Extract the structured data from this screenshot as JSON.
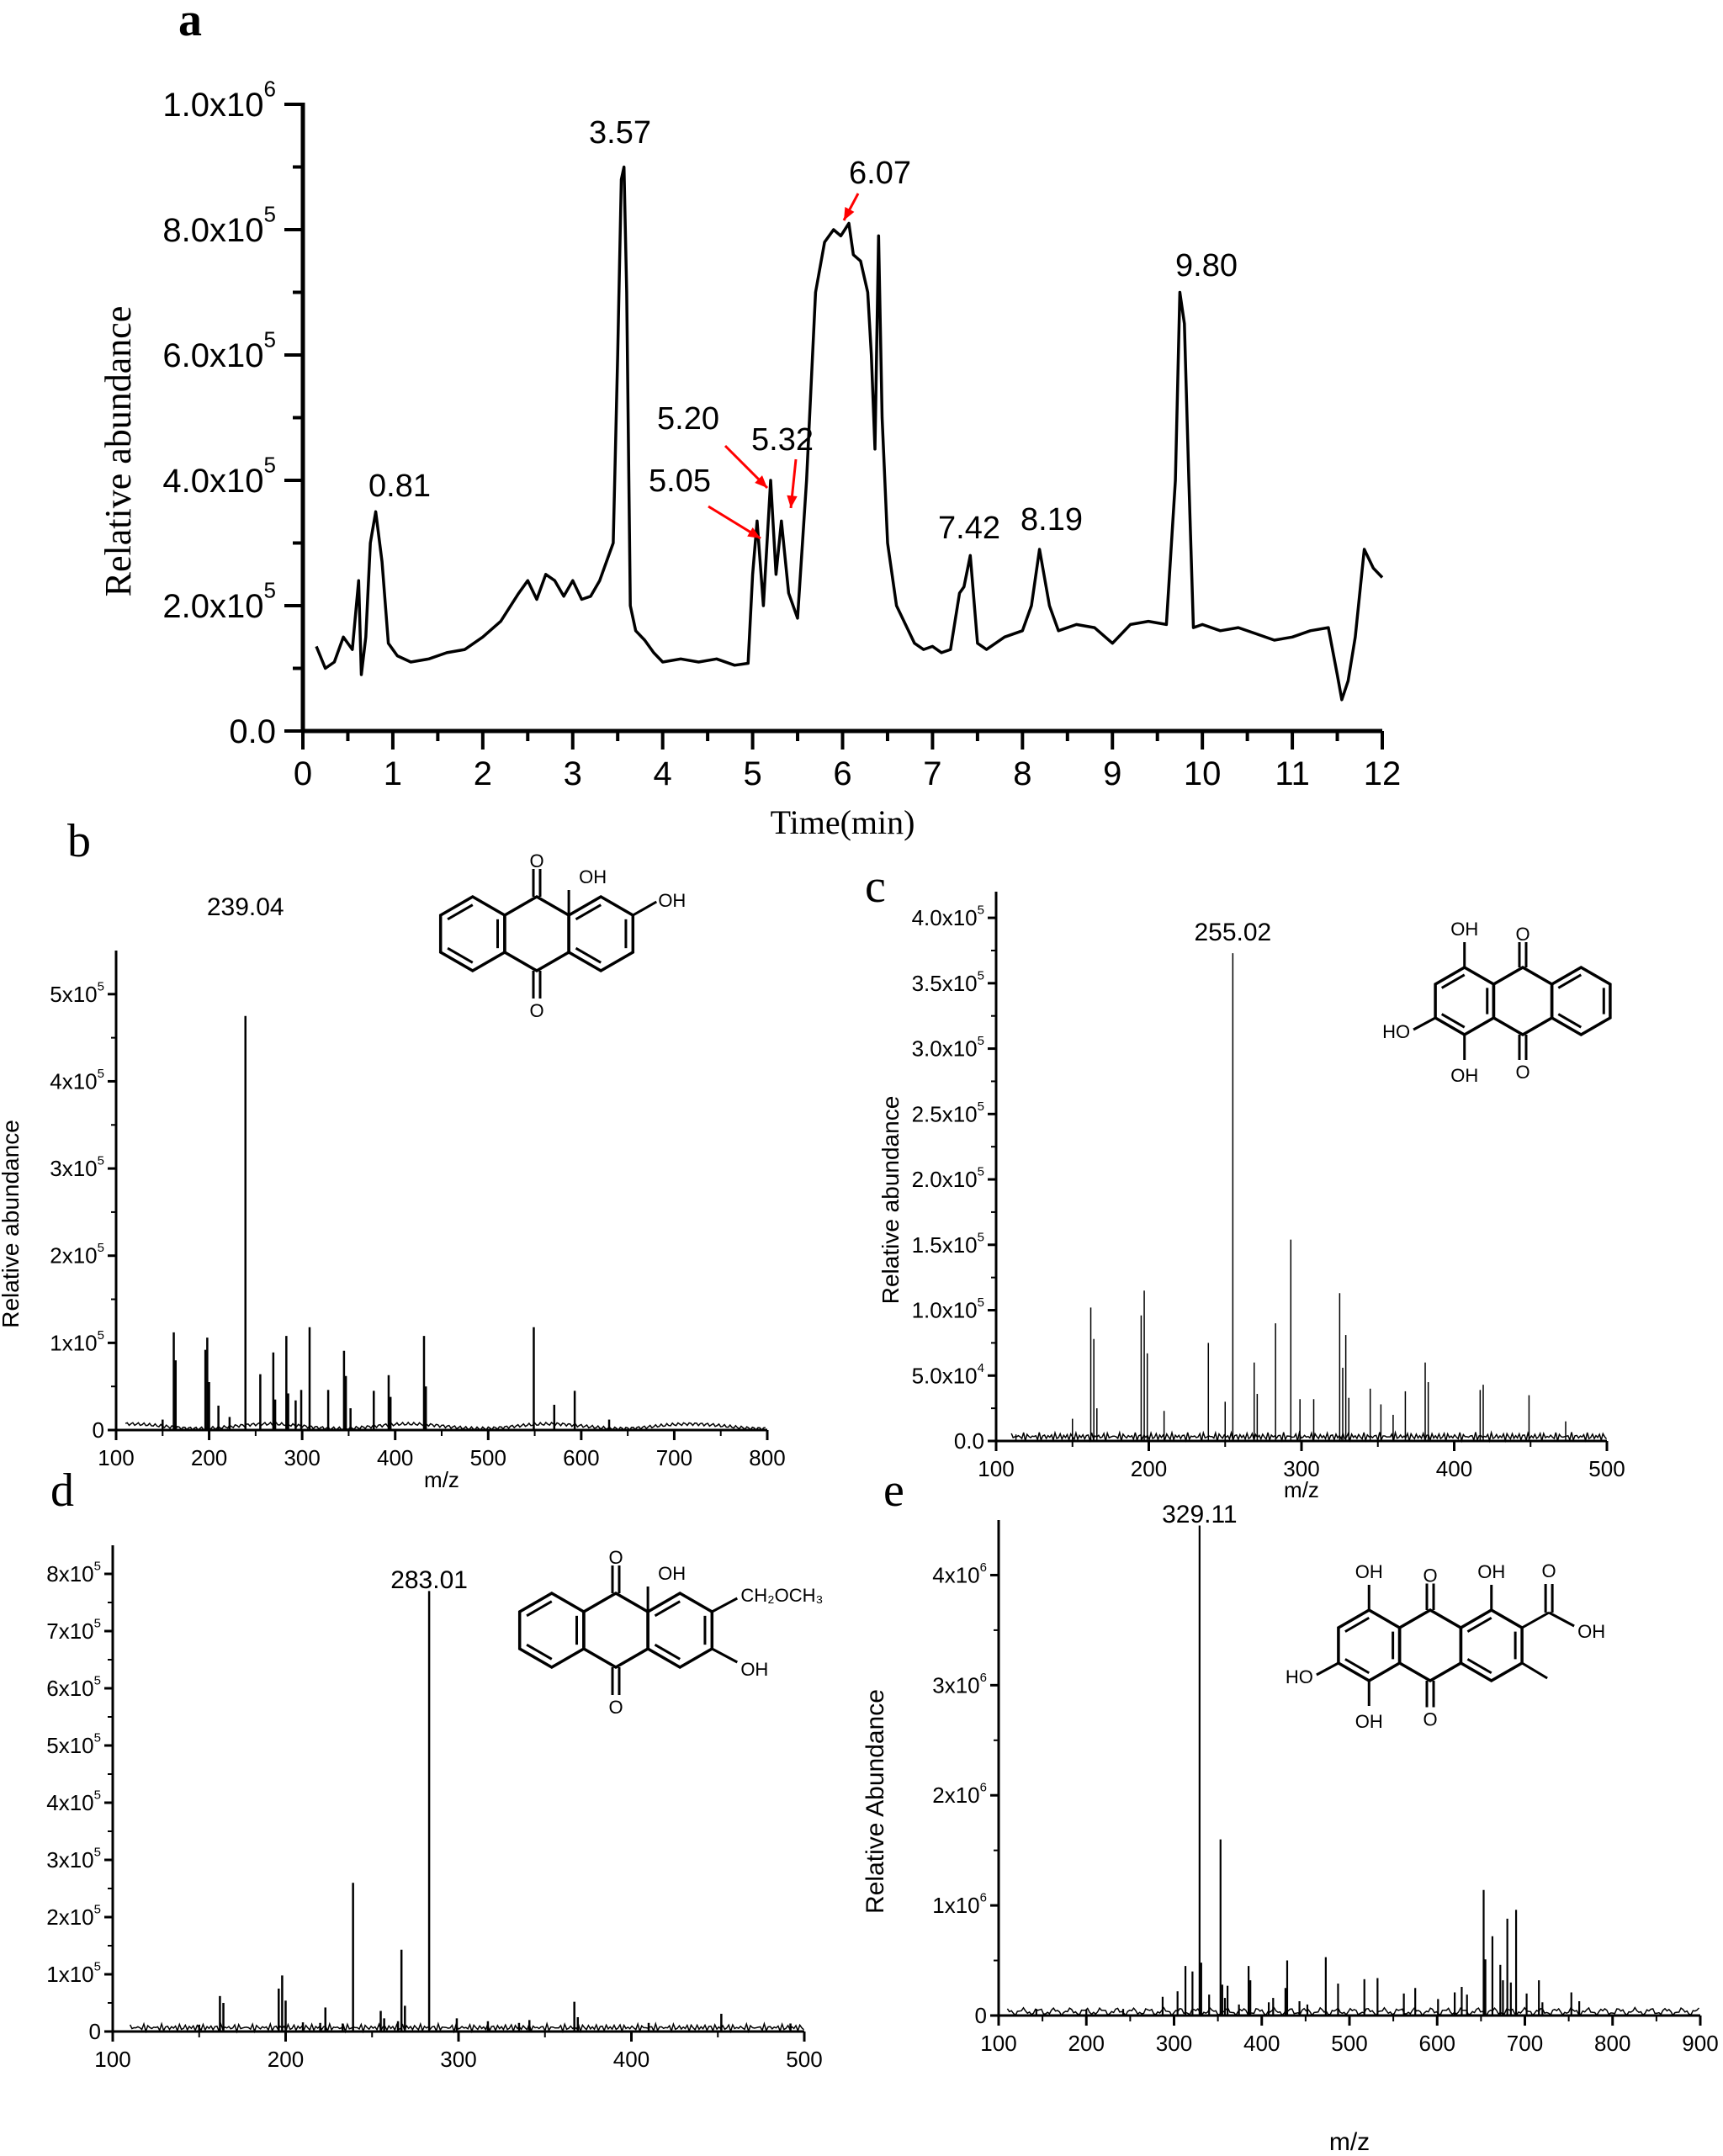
{
  "figure": {
    "panels": [
      {
        "id": "a",
        "letter": "a"
      },
      {
        "id": "b",
        "letter": "b"
      },
      {
        "id": "c",
        "letter": "c"
      },
      {
        "id": "d",
        "letter": "d"
      },
      {
        "id": "e",
        "letter": "e"
      }
    ]
  },
  "chart_data": [
    {
      "panel": "a",
      "type": "line",
      "title": "",
      "xlabel": "Time(min)",
      "ylabel": "Relative abundance",
      "xlim": [
        0,
        12
      ],
      "ylim": [
        0,
        1000000
      ],
      "x_ticks": [
        "0",
        "1",
        "2",
        "3",
        "4",
        "5",
        "6",
        "7",
        "8",
        "9",
        "10",
        "11",
        "12"
      ],
      "y_ticks": [
        "0.0",
        "2.0x10^5",
        "4.0x10^5",
        "6.0x10^5",
        "8.0x10^5",
        "1.0x10^6"
      ],
      "grid": false,
      "color": "#000000",
      "annotation_color": "#ff0000",
      "annotations": [
        {
          "label": "0.81",
          "x": 0.81,
          "y": 350000,
          "color": "#000000"
        },
        {
          "label": "3.57",
          "x": 3.57,
          "y": 900000,
          "color": "#000000"
        },
        {
          "label": "5.05",
          "x": 5.05,
          "y": 340000,
          "color": "#ff0000",
          "arrow": true
        },
        {
          "label": "5.20",
          "x": 5.2,
          "y": 400000,
          "color": "#ff0000",
          "arrow": true
        },
        {
          "label": "5.32",
          "x": 5.32,
          "y": 340000,
          "color": "#ff0000",
          "arrow": true
        },
        {
          "label": "6.07",
          "x": 6.07,
          "y": 810000,
          "color": "#ff0000",
          "arrow": true
        },
        {
          "label": "7.42",
          "x": 7.42,
          "y": 280000,
          "color": "#000000"
        },
        {
          "label": "8.19",
          "x": 8.19,
          "y": 290000,
          "color": "#000000"
        },
        {
          "label": "9.80",
          "x": 9.8,
          "y": 700000,
          "color": "#000000"
        }
      ],
      "x": [
        0.15,
        0.25,
        0.35,
        0.45,
        0.55,
        0.62,
        0.65,
        0.7,
        0.75,
        0.81,
        0.88,
        0.95,
        1.05,
        1.2,
        1.4,
        1.6,
        1.8,
        2.0,
        2.2,
        2.4,
        2.5,
        2.6,
        2.7,
        2.8,
        2.9,
        3.0,
        3.1,
        3.2,
        3.3,
        3.4,
        3.45,
        3.5,
        3.54,
        3.57,
        3.6,
        3.64,
        3.7,
        3.8,
        3.9,
        4.0,
        4.2,
        4.4,
        4.6,
        4.8,
        4.95,
        5.0,
        5.05,
        5.12,
        5.2,
        5.26,
        5.32,
        5.4,
        5.5,
        5.6,
        5.7,
        5.8,
        5.9,
        5.98,
        6.07,
        6.12,
        6.2,
        6.28,
        6.32,
        6.36,
        6.4,
        6.44,
        6.5,
        6.6,
        6.7,
        6.8,
        6.9,
        7.0,
        7.1,
        7.2,
        7.3,
        7.35,
        7.42,
        7.5,
        7.6,
        7.8,
        8.0,
        8.1,
        8.19,
        8.3,
        8.4,
        8.6,
        8.8,
        9.0,
        9.2,
        9.4,
        9.6,
        9.7,
        9.75,
        9.8,
        9.85,
        9.9,
        10.0,
        10.2,
        10.4,
        10.6,
        10.8,
        11.0,
        11.2,
        11.4,
        11.5,
        11.55,
        11.62,
        11.7,
        11.8,
        11.9,
        12.0
      ],
      "values": [
        135000,
        100000,
        110000,
        150000,
        130000,
        240000,
        90000,
        150000,
        300000,
        350000,
        270000,
        140000,
        120000,
        110000,
        115000,
        125000,
        130000,
        150000,
        175000,
        220000,
        240000,
        210000,
        250000,
        240000,
        215000,
        240000,
        210000,
        215000,
        240000,
        280000,
        300000,
        600000,
        880000,
        900000,
        700000,
        200000,
        160000,
        145000,
        125000,
        110000,
        115000,
        110000,
        115000,
        105000,
        108000,
        250000,
        335000,
        200000,
        400000,
        250000,
        335000,
        220000,
        180000,
        400000,
        700000,
        780000,
        800000,
        790000,
        810000,
        760000,
        750000,
        700000,
        600000,
        450000,
        790000,
        500000,
        300000,
        200000,
        170000,
        140000,
        130000,
        135000,
        125000,
        130000,
        220000,
        230000,
        280000,
        140000,
        130000,
        150000,
        160000,
        200000,
        290000,
        200000,
        160000,
        170000,
        165000,
        140000,
        170000,
        175000,
        170000,
        400000,
        700000,
        650000,
        400000,
        165000,
        170000,
        160000,
        165000,
        155000,
        145000,
        150000,
        160000,
        165000,
        90000,
        50000,
        80000,
        150000,
        290000,
        260000,
        245000
      ]
    },
    {
      "panel": "b",
      "type": "bar",
      "chart_style": "mass_spectrum",
      "xlabel": "m/z",
      "ylabel": "Relative abundance",
      "xlim": [
        100,
        800
      ],
      "ylim": [
        0,
        550000
      ],
      "x_ticks": [
        "100",
        "200",
        "300",
        "400",
        "500",
        "600",
        "700",
        "800"
      ],
      "y_ticks": [
        "0",
        "1x10^5",
        "2x10^5",
        "3x10^5",
        "4x10^5",
        "5x10^5"
      ],
      "base_peak_label": "239.04",
      "structure": {
        "substituents": [
          "O",
          "OH",
          "OH",
          "O"
        ]
      },
      "x": [
        150,
        162,
        164,
        196,
        198,
        200,
        210,
        222,
        239.04,
        255,
        269,
        271,
        283,
        285,
        293,
        299,
        308,
        328,
        345,
        347,
        352,
        377,
        393,
        395,
        431,
        433,
        549,
        571,
        593,
        630
      ],
      "values": [
        12000,
        112000,
        80000,
        92000,
        106000,
        55000,
        28000,
        15000,
        475000,
        64000,
        89000,
        35000,
        108000,
        42000,
        34000,
        46000,
        118000,
        46000,
        91000,
        62000,
        25000,
        45000,
        63000,
        38000,
        108000,
        50000,
        118000,
        29000,
        45000,
        12000
      ]
    },
    {
      "panel": "c",
      "type": "bar",
      "chart_style": "mass_spectrum",
      "xlabel": "m/z",
      "ylabel": "Relative abundance",
      "xlim": [
        100,
        500
      ],
      "ylim": [
        0,
        420000
      ],
      "x_ticks": [
        "100",
        "200",
        "300",
        "400",
        "500"
      ],
      "y_ticks": [
        "0.0",
        "5.0x10^4",
        "1.0x10^5",
        "1.5x10^5",
        "2.0x10^5",
        "2.5x10^5",
        "3.0x10^5",
        "3.5x10^5",
        "4.0x10^5"
      ],
      "base_peak_label": "255.02",
      "structure": {
        "substituents": [
          "OH",
          "O",
          "HO",
          "OH",
          "O"
        ]
      },
      "x": [
        113,
        150,
        162,
        164,
        166,
        195,
        197,
        199,
        210,
        239,
        250,
        255.02,
        269,
        271,
        283,
        293,
        299,
        308,
        325,
        327,
        329,
        331,
        345,
        352,
        360,
        368,
        381,
        383,
        417,
        419,
        449,
        473
      ],
      "values": [
        5000,
        17000,
        102000,
        78000,
        25000,
        96000,
        115000,
        67000,
        23000,
        75000,
        30000,
        373000,
        60000,
        36000,
        90000,
        154000,
        32000,
        32000,
        113000,
        56000,
        81000,
        33000,
        40000,
        28000,
        20000,
        38000,
        60000,
        45000,
        39000,
        43000,
        35000,
        15000
      ]
    },
    {
      "panel": "d",
      "type": "bar",
      "chart_style": "mass_spectrum",
      "xlabel": "",
      "ylabel": "",
      "xlim": [
        100,
        500
      ],
      "ylim": [
        0,
        850000
      ],
      "x_ticks": [
        "100",
        "200",
        "300",
        "400",
        "500"
      ],
      "y_ticks": [
        "0",
        "1x10^5",
        "2x10^5",
        "3x10^5",
        "4x10^5",
        "5x10^5",
        "6x10^5",
        "7x10^5",
        "8x10^5"
      ],
      "base_peak_label": "283.01",
      "structure": {
        "substituents": [
          "O",
          "OH",
          "CH2OCH3",
          "OH",
          "O"
        ]
      },
      "x": [
        150,
        162,
        164,
        196,
        198,
        200,
        210,
        220,
        223,
        233,
        239,
        255,
        257,
        265,
        267,
        269,
        283.01,
        299,
        317,
        335,
        341,
        367,
        369,
        410,
        452,
        492
      ],
      "values": [
        12000,
        62000,
        50000,
        75000,
        98000,
        54000,
        16000,
        15000,
        42000,
        14000,
        260000,
        36000,
        23000,
        18000,
        143000,
        45000,
        770000,
        23000,
        18000,
        15000,
        20000,
        52000,
        25000,
        15000,
        31000,
        14000
      ]
    },
    {
      "panel": "e",
      "type": "bar",
      "chart_style": "mass_spectrum",
      "xlabel": "m/z",
      "ylabel": "Relative Abundance",
      "xlim": [
        100,
        900
      ],
      "ylim": [
        0,
        4500000
      ],
      "x_ticks": [
        "100",
        "200",
        "300",
        "400",
        "500",
        "600",
        "700",
        "800",
        "900"
      ],
      "y_ticks": [
        "0",
        "1x10^6",
        "2x10^6",
        "3x10^6",
        "4x10^6"
      ],
      "base_peak_label": "329.11",
      "structure": {
        "substituents": [
          "OH",
          "O",
          "OH",
          "O",
          "OH",
          "HO",
          "OH",
          "O"
        ]
      },
      "x": [
        143,
        200,
        242,
        287,
        304,
        313,
        321,
        329.11,
        331,
        340,
        353,
        355,
        358,
        361,
        374,
        385,
        387,
        408,
        413,
        427,
        429,
        443,
        452,
        473,
        487,
        517,
        532,
        562,
        575,
        601,
        620,
        628,
        634,
        653,
        655,
        663,
        672,
        675,
        680,
        684,
        690,
        702,
        716,
        720,
        753,
        762
      ],
      "values": [
        60000,
        50000,
        60000,
        170000,
        220000,
        450000,
        400000,
        4450000,
        480000,
        190000,
        1600000,
        280000,
        160000,
        270000,
        100000,
        450000,
        320000,
        120000,
        160000,
        250000,
        500000,
        130000,
        100000,
        530000,
        290000,
        330000,
        340000,
        200000,
        250000,
        150000,
        210000,
        260000,
        190000,
        1140000,
        510000,
        720000,
        460000,
        320000,
        880000,
        300000,
        960000,
        200000,
        320000,
        120000,
        210000,
        130000
      ]
    }
  ],
  "chemical_labels": {
    "b": {
      "o_top": "O",
      "oh1": "OH",
      "oh2": "OH",
      "o_bottom": "O"
    },
    "c": {
      "oh_top": "OH",
      "o_top": "O",
      "ho_left": "HO",
      "oh_bottom": "OH",
      "o_bottom": "O"
    },
    "d": {
      "o_top": "O",
      "oh_top": "OH",
      "ch2och3": "CH₂OCH₃",
      "oh_right": "OH",
      "o_bottom": "O"
    },
    "e": {
      "oh_tl": "OH",
      "o_top": "O",
      "oh_tr": "OH",
      "o_acid": "O",
      "oh_acid": "OH",
      "ho_left": "HO",
      "oh_bl": "OH",
      "o_bottom": "O"
    }
  }
}
